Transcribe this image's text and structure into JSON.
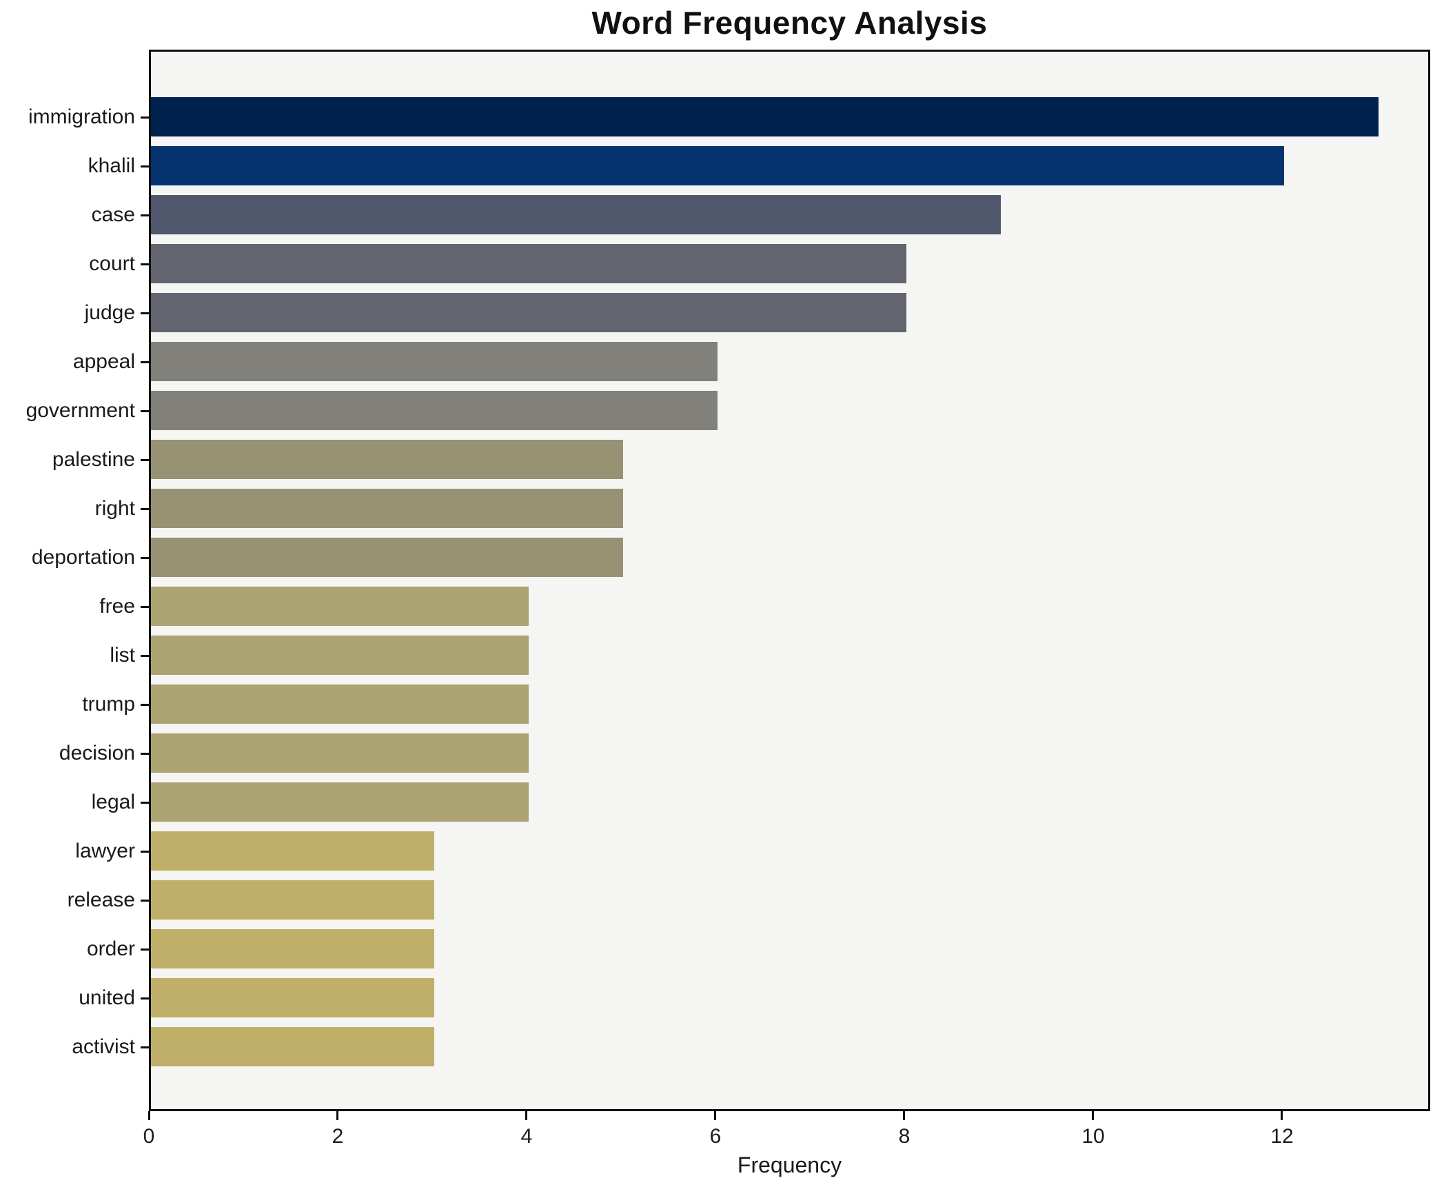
{
  "title": "Word Frequency Analysis",
  "chart_data": {
    "type": "bar",
    "orientation": "horizontal",
    "title": "Word Frequency Analysis",
    "xlabel": "Frequency",
    "ylabel": "",
    "categories": [
      "immigration",
      "khalil",
      "case",
      "court",
      "judge",
      "appeal",
      "government",
      "palestine",
      "right",
      "deportation",
      "free",
      "list",
      "trump",
      "decision",
      "legal",
      "lawyer",
      "release",
      "order",
      "united",
      "activist"
    ],
    "values": [
      13,
      12,
      9,
      8,
      8,
      6,
      6,
      5,
      5,
      5,
      4,
      4,
      4,
      4,
      4,
      3,
      3,
      3,
      3,
      3
    ],
    "bar_colors": [
      "#00224e",
      "#04336f",
      "#50566c",
      "#62646f",
      "#62646f",
      "#82807a",
      "#82807a",
      "#979274",
      "#979274",
      "#979274",
      "#aba371",
      "#aba371",
      "#aba371",
      "#aba371",
      "#aba371",
      "#bfaf68",
      "#bfaf68",
      "#bfaf68",
      "#bfaf68",
      "#bfaf68"
    ],
    "xticks": [
      0,
      2,
      4,
      6,
      8,
      10,
      12
    ],
    "xlim": [
      0,
      13.57
    ],
    "grid": false,
    "legend": null,
    "colormap": "cividis",
    "plot_background": "#f5f5f4",
    "figure_background": "#ffffff"
  }
}
